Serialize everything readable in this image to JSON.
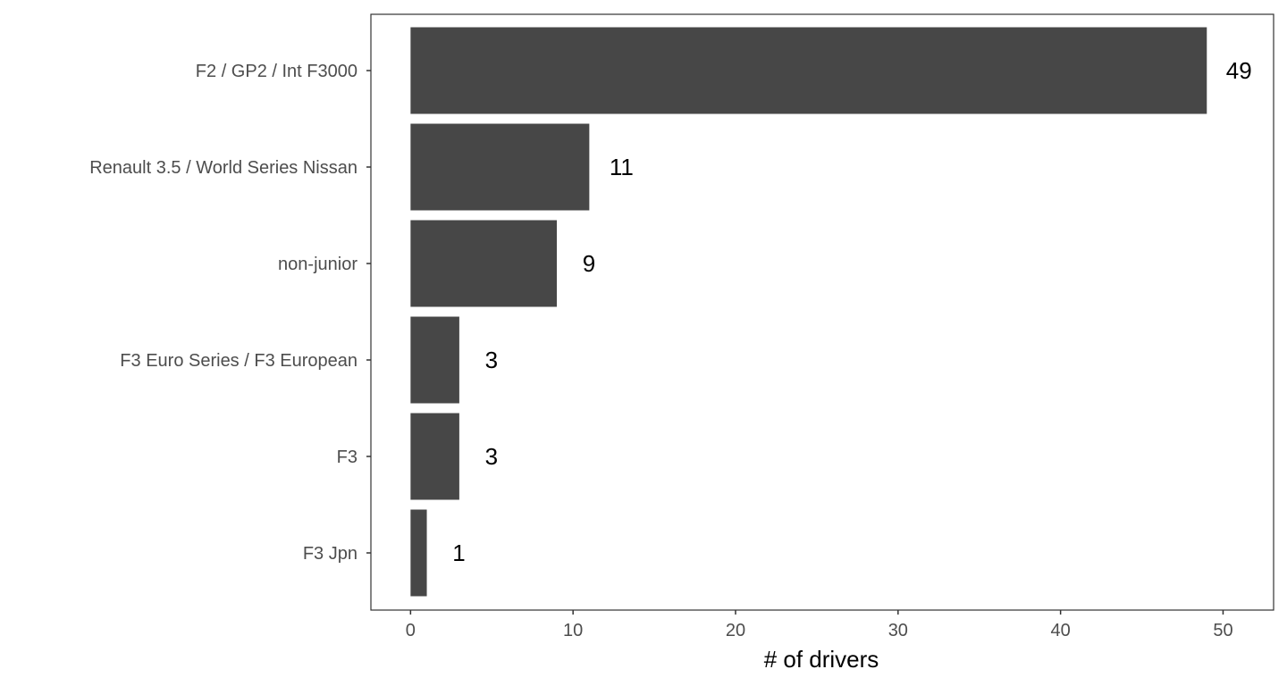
{
  "chart_data": {
    "type": "bar",
    "orientation": "horizontal",
    "categories": [
      "F2 / GP2 / Int F3000",
      "Renault 3.5 / World Series Nissan",
      "non-junior",
      "F3 Euro Series / F3 European",
      "F3",
      "F3 Jpn"
    ],
    "values": [
      49,
      11,
      9,
      3,
      3,
      1
    ],
    "data_labels": [
      "49",
      "11",
      "9",
      "3",
      "3",
      "1"
    ],
    "xlabel": "# of drivers",
    "ylabel": "",
    "xlim": [
      -2.44,
      53.11
    ],
    "xticks": [
      0,
      10,
      20,
      30,
      40,
      50
    ],
    "xtick_labels": [
      "0",
      "10",
      "20",
      "30",
      "40",
      "50"
    ],
    "grid": false,
    "legend": "none",
    "colors": {
      "bar": "#474747",
      "panel_border": "#333333",
      "tick_text": "#4d4d4d",
      "value_text": "#000000"
    }
  }
}
